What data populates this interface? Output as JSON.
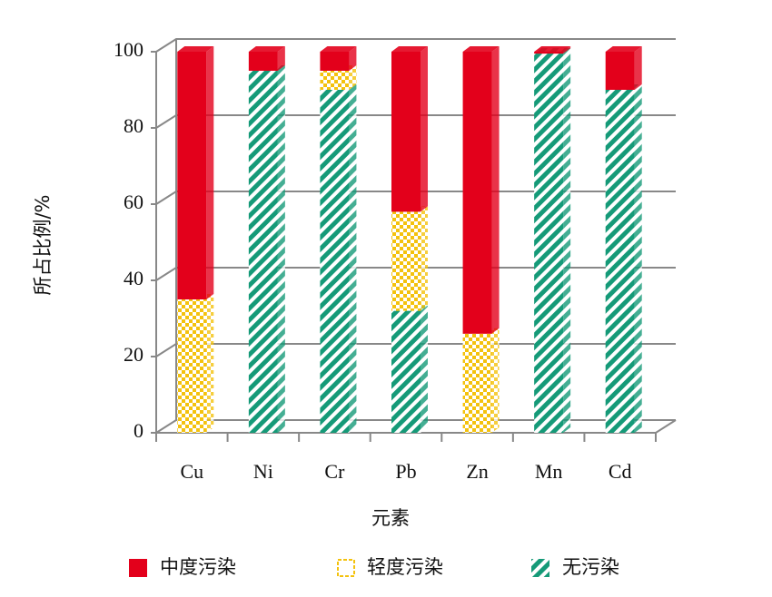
{
  "chart_data": {
    "type": "stacked-bar-3d",
    "categories": [
      "Cu",
      "Ni",
      "Cr",
      "Pb",
      "Zn",
      "Mn",
      "Cd"
    ],
    "series": [
      {
        "name": "中度污染",
        "color": "#e3001b",
        "pattern": "solid",
        "values": [
          65,
          5,
          5,
          42,
          74,
          0.5,
          10
        ]
      },
      {
        "name": "轻度污染",
        "color": "#f4c20d",
        "pattern": "checker",
        "values": [
          35,
          0,
          5,
          26,
          26,
          0,
          0
        ]
      },
      {
        "name": "无污染",
        "color": "#159a78",
        "pattern": "stripes",
        "values": [
          0,
          95,
          90,
          32,
          0,
          99.5,
          90
        ]
      }
    ],
    "ylabel": "所占比例/%",
    "xlabel": "元素",
    "ylim": [
      0,
      100
    ],
    "yticks": [
      0,
      20,
      40,
      60,
      80,
      100
    ],
    "grid": true,
    "legend": "bottom"
  }
}
